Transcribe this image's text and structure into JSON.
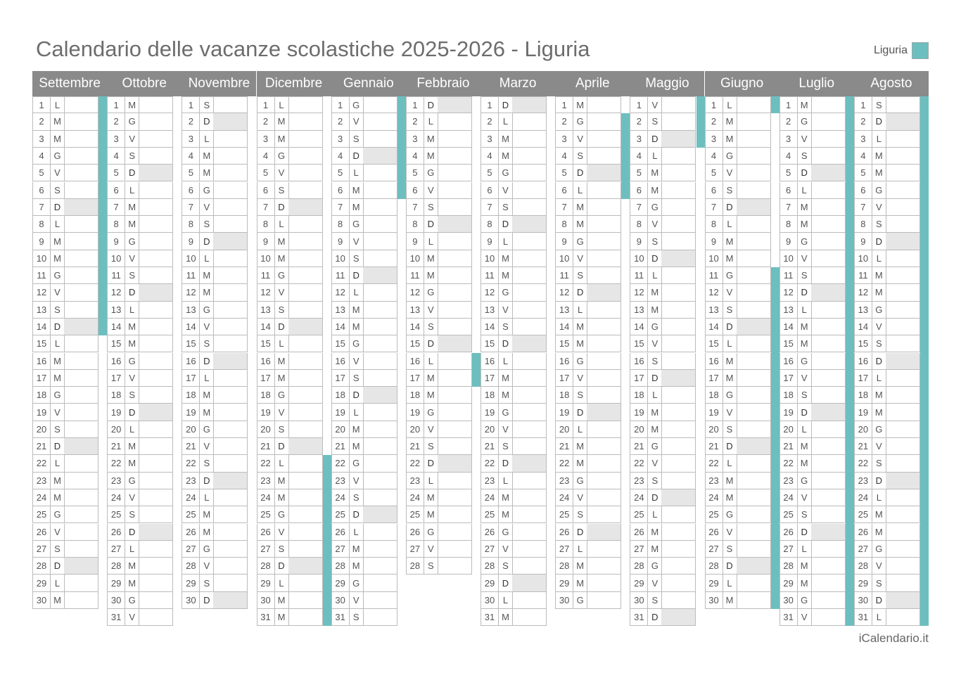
{
  "title": "Calendario delle vacanze scolastiche 2025-2026 - Liguria",
  "legend": {
    "label": "Liguria",
    "color": "#6dbfbf"
  },
  "footer": "iCalendario.it",
  "colors": {
    "header": "#8a8a8a",
    "sunday": "#e6e6e6",
    "holiday": "#6dbfbf"
  },
  "months": [
    {
      "name": "Settembre",
      "days": 30,
      "start_weekday": 1,
      "holidays": [
        [
          1,
          14
        ]
      ]
    },
    {
      "name": "Ottobre",
      "days": 31,
      "start_weekday": 3,
      "holidays": []
    },
    {
      "name": "Novembre",
      "days": 30,
      "start_weekday": 6,
      "holidays": []
    },
    {
      "name": "Dicembre",
      "days": 31,
      "start_weekday": 1,
      "holidays": [
        [
          22,
          31
        ]
      ]
    },
    {
      "name": "Gennaio",
      "days": 31,
      "start_weekday": 4,
      "holidays": [
        [
          1,
          6
        ]
      ]
    },
    {
      "name": "Febbraio",
      "days": 28,
      "start_weekday": 0,
      "holidays": [
        [
          16,
          17
        ]
      ]
    },
    {
      "name": "Marzo",
      "days": 31,
      "start_weekday": 0,
      "holidays": []
    },
    {
      "name": "Aprile",
      "days": 30,
      "start_weekday": 3,
      "holidays": [
        [
          2,
          6
        ]
      ]
    },
    {
      "name": "Maggio",
      "days": 31,
      "start_weekday": 5,
      "holidays": [
        [
          1,
          3
        ]
      ]
    },
    {
      "name": "Giugno",
      "days": 30,
      "start_weekday": 1,
      "holidays": [
        [
          1,
          1
        ],
        [
          11,
          30
        ]
      ]
    },
    {
      "name": "Luglio",
      "days": 31,
      "start_weekday": 3,
      "holidays": [
        [
          1,
          31
        ]
      ]
    },
    {
      "name": "Agosto",
      "days": 31,
      "start_weekday": 6,
      "holidays": [
        [
          1,
          31
        ]
      ]
    }
  ],
  "weekday_letters": [
    "D",
    "L",
    "M",
    "M",
    "G",
    "V",
    "S"
  ]
}
